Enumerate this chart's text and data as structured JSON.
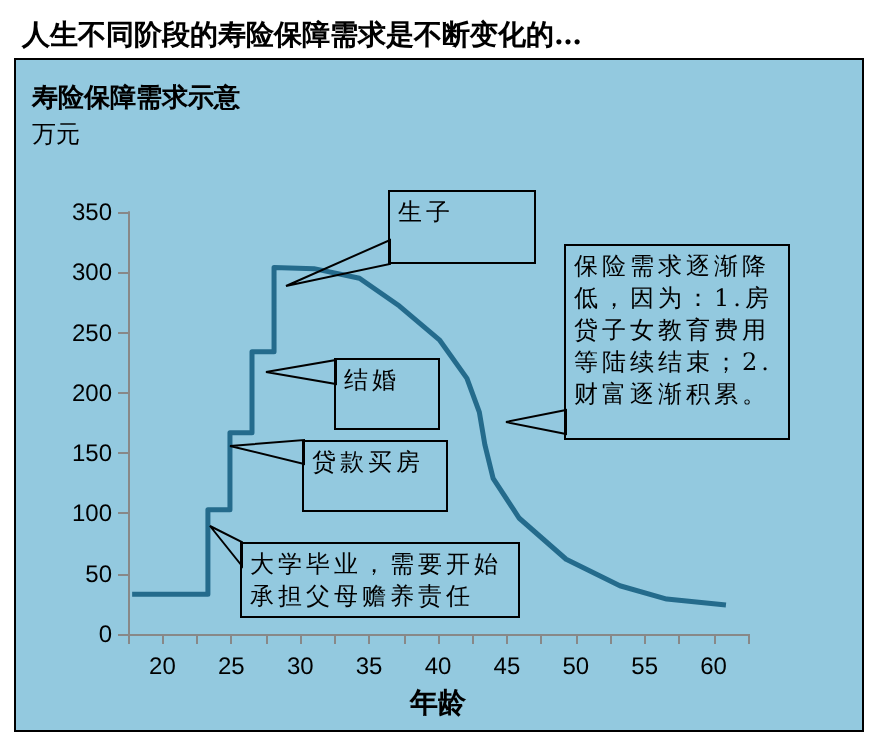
{
  "chart_data": {
    "type": "line",
    "title": "人生不同阶段的寿险保障需求是不断变化的…",
    "subtitle": "寿险保障需求示意",
    "ylabel": "万元",
    "xlabel": "年龄",
    "series": [
      {
        "color": "#246b8c",
        "x": [
          17.8,
          23.3,
          23.3,
          24.9,
          24.9,
          26.5,
          26.5,
          28.1,
          28.1,
          31.0,
          34.3,
          37.2,
          40.1,
          42.1,
          43.0,
          43.4,
          44.0,
          45.9,
          49.3,
          53.2,
          56.6,
          60.9
        ],
        "values": [
          33,
          33,
          103,
          103,
          167,
          167,
          234,
          234,
          304,
          303,
          295,
          272,
          244,
          212,
          184,
          157,
          129,
          96,
          62,
          40,
          29,
          24
        ]
      }
    ],
    "xlim": [
      17.5,
      62.5
    ],
    "xticks": [
      {
        "value": 17.5,
        "label": null
      },
      20,
      {
        "value": 22.5,
        "label": null
      },
      25,
      {
        "value": 27.5,
        "label": null
      },
      30,
      {
        "value": 32.5,
        "label": null
      },
      35,
      {
        "value": 37.5,
        "label": null
      },
      40,
      {
        "value": 42.5,
        "label": null
      },
      45,
      {
        "value": 47.5,
        "label": null
      },
      50,
      {
        "value": 52.5,
        "label": null
      },
      55,
      {
        "value": 57.5,
        "label": null
      },
      60,
      {
        "value": 62.5,
        "label": null
      }
    ],
    "ylim": [
      0,
      350
    ],
    "yticks": [
      0,
      50,
      100,
      150,
      200,
      250,
      300,
      350
    ],
    "grid": false,
    "marker": "none",
    "line_style": "solid",
    "annotations": [
      "生子",
      "结婚",
      "贷款买房",
      "大学毕业，需要开始承担父母赡养责任",
      "保险需求逐渐降低，因为：1.房贷子女教育费用等陆续结束；2.财富逐渐积累。"
    ]
  }
}
